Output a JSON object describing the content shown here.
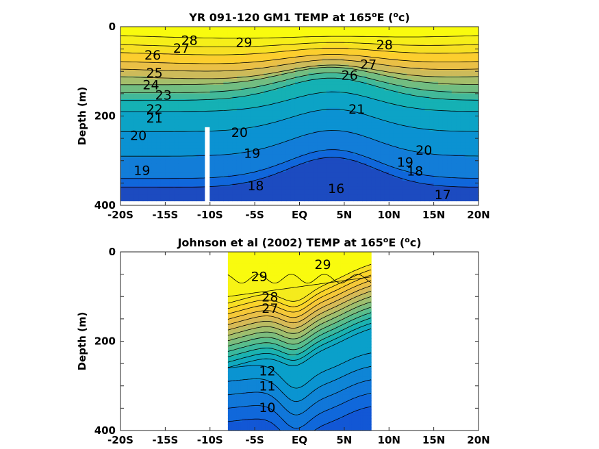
{
  "chart_data": [
    {
      "type": "contour",
      "title": "YR 091-120 GM1 TEMP at 165",
      "title_super": "o",
      "title_tail": "E (",
      "title_unit_super": "o",
      "title_end": "c)",
      "xlabel": "",
      "ylabel": "Depth (m)",
      "xlim": [
        -20,
        20
      ],
      "ylim": [
        0,
        400
      ],
      "y_reversed": true,
      "x_ticks": [
        -20,
        -15,
        -10,
        -5,
        0,
        5,
        10,
        15,
        20
      ],
      "x_tick_labels": [
        "-20S",
        "-15S",
        "-10S",
        "-5S",
        "EQ",
        "5N",
        "10N",
        "15N",
        "20N"
      ],
      "y_ticks": [
        0,
        200,
        400
      ],
      "y_tick_labels": [
        "0",
        "200",
        "400"
      ],
      "data_extent": {
        "x": [
          -20,
          20
        ],
        "y": [
          0,
          390
        ]
      },
      "gap_column": {
        "x": -10.3,
        "y_top": 225
      },
      "colormap": "parula",
      "color_range": [
        15,
        30
      ],
      "contour_levels": [
        16,
        17,
        18,
        19,
        20,
        21,
        22,
        23,
        24,
        25,
        26,
        27,
        28,
        29
      ],
      "contour_labels": [
        {
          "text": "28",
          "x": -12.3,
          "y": 32
        },
        {
          "text": "29",
          "x": -6.2,
          "y": 37
        },
        {
          "text": "28",
          "x": 9.5,
          "y": 42
        },
        {
          "text": "27",
          "x": -13.2,
          "y": 50
        },
        {
          "text": "26",
          "x": -16.4,
          "y": 65
        },
        {
          "text": "27",
          "x": 7.7,
          "y": 86
        },
        {
          "text": "26",
          "x": 5.6,
          "y": 110
        },
        {
          "text": "25",
          "x": -16.2,
          "y": 105
        },
        {
          "text": "24",
          "x": -16.6,
          "y": 132
        },
        {
          "text": "23",
          "x": -15.2,
          "y": 155
        },
        {
          "text": "22",
          "x": -16.2,
          "y": 186
        },
        {
          "text": "21",
          "x": -16.2,
          "y": 206
        },
        {
          "text": "20",
          "x": -18.0,
          "y": 245
        },
        {
          "text": "20",
          "x": -6.7,
          "y": 238
        },
        {
          "text": "19",
          "x": -17.6,
          "y": 323
        },
        {
          "text": "19",
          "x": -5.3,
          "y": 285
        },
        {
          "text": "18",
          "x": -4.9,
          "y": 358
        },
        {
          "text": "16",
          "x": 4.1,
          "y": 364
        },
        {
          "text": "20",
          "x": 13.9,
          "y": 278
        },
        {
          "text": "19",
          "x": 11.8,
          "y": 305
        },
        {
          "text": "18",
          "x": 12.9,
          "y": 325
        },
        {
          "text": "17",
          "x": 16.0,
          "y": 378
        },
        {
          "text": "21",
          "x": 6.4,
          "y": 186
        }
      ]
    },
    {
      "type": "contour",
      "title": "Johnson et al (2002) TEMP at 165",
      "title_super": "o",
      "title_tail": "E (",
      "title_unit_super": "o",
      "title_end": "c)",
      "xlabel": "",
      "ylabel": "Depth (m)",
      "xlim": [
        -20,
        20
      ],
      "ylim": [
        0,
        400
      ],
      "y_reversed": true,
      "x_ticks": [
        -20,
        -15,
        -10,
        -5,
        0,
        5,
        10,
        15,
        20
      ],
      "x_tick_labels": [
        "-20S",
        "-15S",
        "-10S",
        "-5S",
        "EQ",
        "5N",
        "10N",
        "15N",
        "20N"
      ],
      "y_ticks": [
        0,
        200,
        400
      ],
      "y_tick_labels": [
        "0",
        "200",
        "400"
      ],
      "data_extent": {
        "x": [
          -8,
          8
        ],
        "y": [
          0,
          400
        ]
      },
      "colormap": "parula",
      "color_range": [
        8,
        30
      ],
      "contour_levels": [
        10,
        11,
        12,
        13,
        14,
        15,
        16,
        17,
        18,
        19,
        20,
        21,
        22,
        23,
        24,
        25,
        26,
        27,
        28,
        29
      ],
      "contour_labels": [
        {
          "text": "29",
          "x": -4.5,
          "y": 57
        },
        {
          "text": "29",
          "x": 2.6,
          "y": 30
        },
        {
          "text": "28",
          "x": -3.3,
          "y": 103
        },
        {
          "text": "27",
          "x": -3.3,
          "y": 128
        },
        {
          "text": "11",
          "x": -3.6,
          "y": 302
        },
        {
          "text": "12",
          "x": -3.6,
          "y": 268
        },
        {
          "text": "10",
          "x": -3.6,
          "y": 350
        }
      ]
    }
  ]
}
